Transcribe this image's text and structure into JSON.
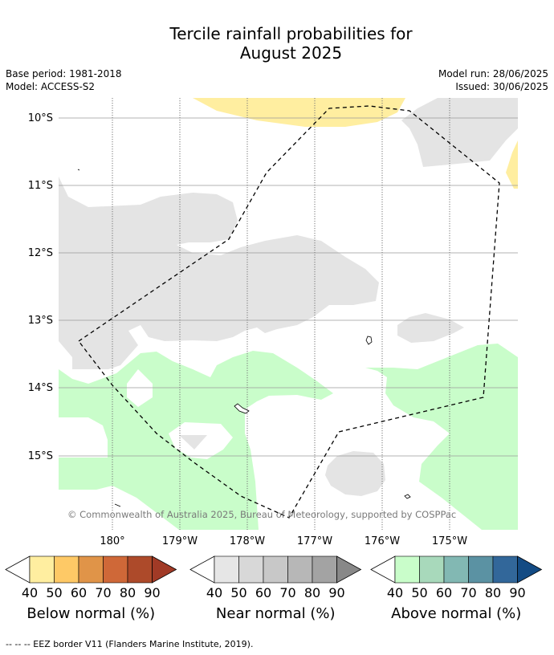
{
  "title_line1": "Tercile rainfall probabilities for",
  "title_line2": "August 2025",
  "meta_left": {
    "base_period": "Base period: 1981-2018",
    "model": "Model: ACCESS-S2"
  },
  "meta_right": {
    "model_run": "Model run: 28/06/2025",
    "issued": "Issued: 30/06/2025"
  },
  "y_labels": [
    "10°S",
    "11°S",
    "12°S",
    "13°S",
    "14°S",
    "15°S"
  ],
  "x_labels": [
    "180°",
    "179°W",
    "178°W",
    "177°W",
    "176°W",
    "175°W"
  ],
  "copyright": "© Commonwealth of Australia 2025, Bureau of Meteorology, supported by COSPPac",
  "colorbars": [
    {
      "title": "Below normal (%)",
      "ticks": [
        "40",
        "50",
        "60",
        "70",
        "80",
        "90"
      ],
      "colors": [
        "#ffeea0",
        "#fec966",
        "#e09448",
        "#cf6838",
        "#ad4a2a",
        "#a13a26"
      ]
    },
    {
      "title": "Near normal (%)",
      "ticks": [
        "40",
        "50",
        "60",
        "70",
        "80",
        "90"
      ],
      "colors": [
        "#e6e6e6",
        "#d8d8d8",
        "#c8c8c8",
        "#b7b7b7",
        "#a3a3a3",
        "#888888"
      ]
    },
    {
      "title": "Above normal (%)",
      "ticks": [
        "40",
        "50",
        "60",
        "70",
        "80",
        "90"
      ],
      "colors": [
        "#c9fdca",
        "#a8d9bb",
        "#82b8b3",
        "#5b92a3",
        "#32679a",
        "#134b84"
      ]
    }
  ],
  "footer": "--  --  -- EEZ border V11 (Flanders Marine Institute, 2019).",
  "colors": {
    "below": "#ffeea0",
    "near": "#e6e6e6",
    "above": "#c9fdca",
    "eez": "#000000"
  }
}
